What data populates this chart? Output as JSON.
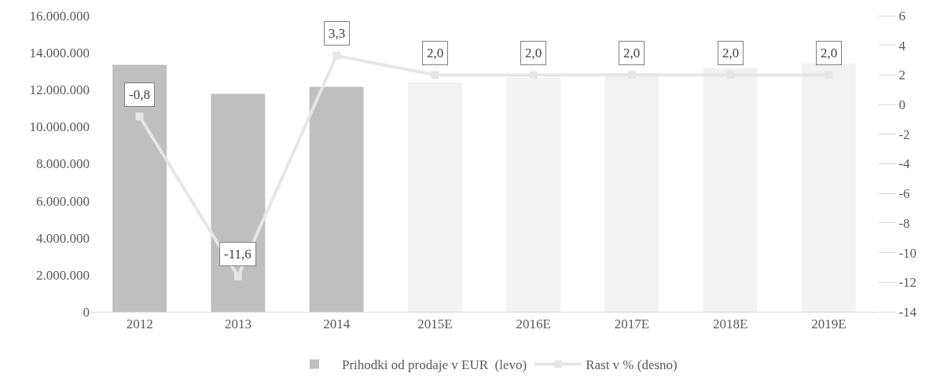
{
  "chart_data": {
    "type": "bar",
    "categories": [
      "2012",
      "2013",
      "2014",
      "2015E",
      "2016E",
      "2017E",
      "2018E",
      "2019E"
    ],
    "series": [
      {
        "name": "Prihodki od prodaje v EUR  (levo)",
        "color": "#bfbfbf",
        "colors": [
          "#bfbfbf",
          "#bfbfbf",
          "#bfbfbf",
          "#f2f2f2",
          "#f2f2f2",
          "#f2f2f2",
          "#f2f2f2",
          "#f2f2f2"
        ],
        "values": [
          13350000,
          11780000,
          12160000,
          12400000,
          12650000,
          12900000,
          13160000,
          13420000
        ]
      },
      {
        "name": "Rast v % (desno)",
        "type": "line",
        "axis": "y2",
        "color": "#e6e6e6",
        "marker": "square",
        "values": [
          -0.8,
          -11.6,
          3.3,
          2.0,
          2.0,
          2.0,
          2.0,
          2.0
        ],
        "value_labels": [
          "-0,8",
          "-11,6",
          "3,3",
          "2,0",
          "2,0",
          "2,0",
          "2,0",
          "2,0"
        ]
      }
    ],
    "ylim": [
      0,
      16000000
    ],
    "yticks": [
      {
        "value": 0,
        "label": "0"
      },
      {
        "value": 2000000,
        "label": "2.000.000"
      },
      {
        "value": 4000000,
        "label": "4.000.000"
      },
      {
        "value": 6000000,
        "label": "6.000.000"
      },
      {
        "value": 8000000,
        "label": "8.000.000"
      },
      {
        "value": 10000000,
        "label": "10.000.000"
      },
      {
        "value": 12000000,
        "label": "12.000.000"
      },
      {
        "value": 14000000,
        "label": "14.000.000"
      },
      {
        "value": 16000000,
        "label": "16.000.000"
      }
    ],
    "y2lim": [
      -14,
      6
    ],
    "y2ticks": [
      -14,
      -12,
      -10,
      -8,
      -6,
      -4,
      -2,
      0,
      2,
      4,
      6
    ],
    "grid": false,
    "legend": "bottom"
  }
}
